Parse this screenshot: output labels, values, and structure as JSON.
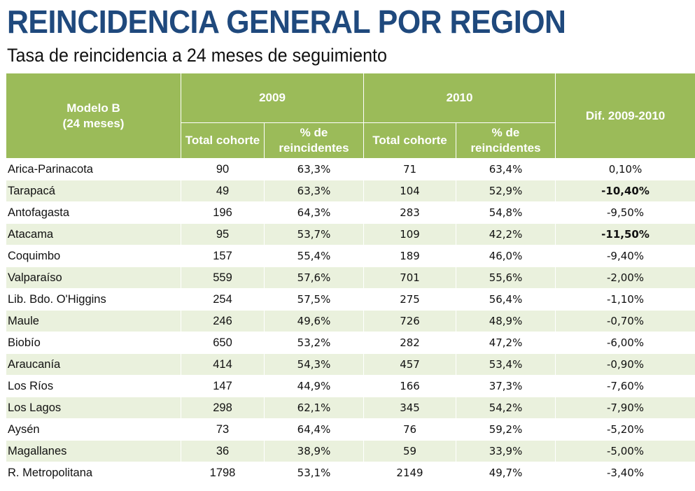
{
  "title": "REINCIDENCIA GENERAL POR REGION",
  "subtitle": "Tasa de reincidencia a 24 meses de seguimiento",
  "header": {
    "model_line1": "Modelo B",
    "model_line2": "(24 meses)",
    "year1": "2009",
    "year2": "2010",
    "dif": "Dif. 2009-2010",
    "total_cohorte": "Total cohorte",
    "pct_line1": "% de",
    "pct_line2": "reincidentes"
  },
  "colors": {
    "header_green": "#9bbb59",
    "row_band": "#eaf1dd",
    "title_blue": "#1f497d",
    "highlight": "#9bbb59"
  },
  "chart_data": {
    "type": "table",
    "title": "REINCIDENCIA GENERAL POR REGION",
    "subtitle": "Tasa de reincidencia a 24 meses de seguimiento",
    "columns": [
      "Modelo B (24 meses)",
      "2009 Total cohorte",
      "2009 % de reincidentes",
      "2010 Total cohorte",
      "2010 % de reincidentes",
      "Dif. 2009-2010"
    ],
    "rows": [
      {
        "region": "Arica-Parinacota",
        "tc2009": "90",
        "pct2009": "63,3%",
        "tc2010": "71",
        "pct2010": "63,4%",
        "dif": "0,10%",
        "highlight": false
      },
      {
        "region": "Tarapacá",
        "tc2009": "49",
        "pct2009": "63,3%",
        "tc2010": "104",
        "pct2010": "52,9%",
        "dif": "-10,40%",
        "highlight": true
      },
      {
        "region": "Antofagasta",
        "tc2009": "196",
        "pct2009": "64,3%",
        "tc2010": "283",
        "pct2010": "54,8%",
        "dif": "-9,50%",
        "highlight": false
      },
      {
        "region": "Atacama",
        "tc2009": "95",
        "pct2009": "53,7%",
        "tc2010": "109",
        "pct2010": "42,2%",
        "dif": "-11,50%",
        "highlight": true
      },
      {
        "region": "Coquimbo",
        "tc2009": "157",
        "pct2009": "55,4%",
        "tc2010": "189",
        "pct2010": "46,0%",
        "dif": "-9,40%",
        "highlight": false
      },
      {
        "region": "Valparaíso",
        "tc2009": "559",
        "pct2009": "57,6%",
        "tc2010": "701",
        "pct2010": "55,6%",
        "dif": "-2,00%",
        "highlight": false
      },
      {
        "region": "Lib. Bdo. O'Higgins",
        "tc2009": "254",
        "pct2009": "57,5%",
        "tc2010": "275",
        "pct2010": "56,4%",
        "dif": "-1,10%",
        "highlight": false
      },
      {
        "region": "Maule",
        "tc2009": "246",
        "pct2009": "49,6%",
        "tc2010": "726",
        "pct2010": "48,9%",
        "dif": "-0,70%",
        "highlight": false
      },
      {
        "region": "Biobío",
        "tc2009": "650",
        "pct2009": "53,2%",
        "tc2010": "282",
        "pct2010": "47,2%",
        "dif": "-6,00%",
        "highlight": false
      },
      {
        "region": "Araucanía",
        "tc2009": "414",
        "pct2009": "54,3%",
        "tc2010": "457",
        "pct2010": "53,4%",
        "dif": "-0,90%",
        "highlight": false
      },
      {
        "region": "Los Ríos",
        "tc2009": "147",
        "pct2009": "44,9%",
        "tc2010": "166",
        "pct2010": "37,3%",
        "dif": "-7,60%",
        "highlight": false
      },
      {
        "region": "Los Lagos",
        "tc2009": "298",
        "pct2009": "62,1%",
        "tc2010": "345",
        "pct2010": "54,2%",
        "dif": "-7,90%",
        "highlight": false
      },
      {
        "region": "Aysén",
        "tc2009": "73",
        "pct2009": "64,4%",
        "tc2010": "76",
        "pct2010": "59,2%",
        "dif": "-5,20%",
        "highlight": false
      },
      {
        "region": "Magallanes",
        "tc2009": "36",
        "pct2009": "38,9%",
        "tc2010": "59",
        "pct2010": "33,9%",
        "dif": "-5,00%",
        "highlight": false
      },
      {
        "region": "R. Metropolitana",
        "tc2009": "1798",
        "pct2009": "53,1%",
        "tc2010": "2149",
        "pct2010": "49,7%",
        "dif": "-3,40%",
        "highlight": false
      }
    ]
  }
}
